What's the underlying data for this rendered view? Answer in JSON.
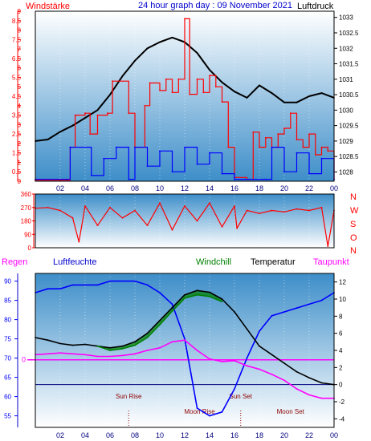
{
  "header": {
    "left_label": "Windstärke",
    "title": "24 hour graph day : 09 November 2021",
    "right_label": "Luftdruck"
  },
  "panel3_header": {
    "regen": "Regen",
    "luftfeuchte": "Luftfeuchte",
    "windchill": "Windchill",
    "temperatur": "Temperatur",
    "taupunkt": "Taupunkt"
  },
  "compass": [
    "N",
    "W",
    "S",
    "O",
    "N"
  ],
  "colors": {
    "red": "#ff0000",
    "blue": "#0000ff",
    "black": "#000000",
    "green": "#008000",
    "magenta": "#ff00ff",
    "navy": "#000080",
    "gradient_top": "#ffffff",
    "gradient_bottom": "#3d8ec9"
  },
  "chart_data": [
    {
      "type": "line",
      "name": "wind-pressure",
      "x_ticks": [
        "02",
        "04",
        "06",
        "08",
        "10",
        "12",
        "14",
        "16",
        "18",
        "20",
        "22",
        "00"
      ],
      "xlim": [
        0,
        24
      ],
      "y_left": {
        "label": "Windstärke",
        "ticks": [
          "0",
          "0.5",
          "1",
          "1.5",
          "2",
          "2.5",
          "3",
          "3.5",
          "4",
          "4.5",
          "5",
          "5.5",
          "6",
          "6.5",
          "7",
          "7.5",
          "8",
          "8.5",
          "9"
        ],
        "ylim": [
          0,
          9
        ]
      },
      "y_right": {
        "label": "Luftdruck",
        "ticks": [
          "1028",
          "1028.5",
          "1029",
          "1029.5",
          "1030",
          "1030.5",
          "1031",
          "1031.5",
          "1032",
          "1032.5",
          "1033"
        ],
        "ylim": [
          1027.7,
          1033.2
        ]
      },
      "series": [
        {
          "color": "black",
          "points": [
            [
              0,
              1029.0
            ],
            [
              1,
              1029.05
            ],
            [
              2,
              1029.3
            ],
            [
              3,
              1029.5
            ],
            [
              4,
              1029.75
            ],
            [
              5,
              1030.0
            ],
            [
              6,
              1030.5
            ],
            [
              7,
              1031.1
            ],
            [
              8,
              1031.6
            ],
            [
              9,
              1032.0
            ],
            [
              10,
              1032.2
            ],
            [
              11,
              1032.35
            ],
            [
              12,
              1032.2
            ],
            [
              13,
              1031.85
            ],
            [
              14,
              1031.3
            ],
            [
              15,
              1030.9
            ],
            [
              16,
              1030.6
            ],
            [
              17,
              1030.4
            ],
            [
              18,
              1030.8
            ],
            [
              19,
              1030.55
            ],
            [
              20,
              1030.25
            ],
            [
              21,
              1030.25
            ],
            [
              22,
              1030.45
            ],
            [
              23,
              1030.55
            ],
            [
              24,
              1030.4
            ]
          ]
        },
        {
          "color": "red",
          "points": [
            [
              0,
              0.05
            ],
            [
              1,
              0.05
            ],
            [
              2,
              0.05
            ],
            [
              2.8,
              1.8
            ],
            [
              3.2,
              3.5
            ],
            [
              4,
              3.6
            ],
            [
              4.4,
              2.5
            ],
            [
              5,
              3.5
            ],
            [
              5.8,
              3.6
            ],
            [
              6.2,
              5.3
            ],
            [
              7.5,
              3.6
            ],
            [
              8,
              1.8
            ],
            [
              8.8,
              4.0
            ],
            [
              9.2,
              5.2
            ],
            [
              10,
              4.8
            ],
            [
              10.5,
              5.4
            ],
            [
              11,
              4.7
            ],
            [
              11.5,
              5.4
            ],
            [
              12,
              8.6
            ],
            [
              12.4,
              4.6
            ],
            [
              13,
              5.4
            ],
            [
              13.5,
              4.7
            ],
            [
              14,
              5.6
            ],
            [
              14.5,
              5.0
            ],
            [
              15,
              4.2
            ],
            [
              15.5,
              1.8
            ],
            [
              16,
              0.2
            ],
            [
              17,
              0.1
            ],
            [
              17.5,
              2.6
            ],
            [
              18,
              1.8
            ],
            [
              18.5,
              2.3
            ],
            [
              19,
              1.8
            ],
            [
              19.5,
              2.5
            ],
            [
              20,
              2.8
            ],
            [
              20.5,
              3.6
            ],
            [
              21,
              2.2
            ],
            [
              21.5,
              1.8
            ],
            [
              22,
              2.5
            ],
            [
              22.5,
              1.4
            ],
            [
              23,
              1.8
            ],
            [
              23.5,
              1.6
            ],
            [
              24,
              0.1
            ]
          ]
        },
        {
          "color": "blue",
          "points": [
            [
              0,
              0.1
            ],
            [
              2.5,
              0.1
            ],
            [
              2.8,
              1.8
            ],
            [
              4.5,
              0.3
            ],
            [
              5.5,
              1.2
            ],
            [
              6.5,
              1.8
            ],
            [
              7.5,
              0.1
            ],
            [
              8,
              1.8
            ],
            [
              9,
              0.8
            ],
            [
              10,
              1.6
            ],
            [
              11,
              0.5
            ],
            [
              12,
              1.8
            ],
            [
              13,
              0.9
            ],
            [
              14,
              1.5
            ],
            [
              15,
              0.4
            ],
            [
              16,
              0.1
            ],
            [
              18.5,
              0.1
            ],
            [
              19,
              1.8
            ],
            [
              20,
              0.5
            ],
            [
              21,
              1.5
            ],
            [
              22,
              0.4
            ],
            [
              23,
              1.2
            ],
            [
              24,
              0.1
            ]
          ]
        }
      ]
    },
    {
      "type": "line",
      "name": "wind-direction",
      "x_ticks": [
        "02",
        "04",
        "06",
        "08",
        "10",
        "12",
        "14",
        "16",
        "18",
        "20",
        "22",
        "00"
      ],
      "xlim": [
        0,
        24
      ],
      "y_left": {
        "ticks": [
          "0",
          "90",
          "180",
          "270",
          "360"
        ],
        "ylim": [
          0,
          360
        ]
      },
      "series": [
        {
          "color": "red",
          "points": [
            [
              0,
              265
            ],
            [
              1,
              270
            ],
            [
              2,
              250
            ],
            [
              3,
              200
            ],
            [
              3.5,
              40
            ],
            [
              4,
              280
            ],
            [
              5,
              150
            ],
            [
              6,
              270
            ],
            [
              7,
              200
            ],
            [
              8,
              250
            ],
            [
              9,
              150
            ],
            [
              10,
              300
            ],
            [
              11,
              120
            ],
            [
              12,
              280
            ],
            [
              13,
              180
            ],
            [
              14,
              300
            ],
            [
              15,
              140
            ],
            [
              16,
              280
            ],
            [
              16.2,
              130
            ],
            [
              17,
              250
            ],
            [
              18,
              230
            ],
            [
              19,
              250
            ],
            [
              20,
              240
            ],
            [
              21,
              260
            ],
            [
              22,
              250
            ],
            [
              23,
              270
            ],
            [
              23.5,
              10
            ],
            [
              24,
              250
            ]
          ]
        }
      ]
    },
    {
      "type": "line",
      "name": "humidity-temperature",
      "x_ticks": [
        "02",
        "04",
        "06",
        "08",
        "10",
        "12",
        "14",
        "16",
        "18",
        "20",
        "22",
        "00"
      ],
      "xlim": [
        0,
        24
      ],
      "y_left": {
        "label": "Luftfeuchte",
        "ticks": [
          "55",
          "60",
          "65",
          "70",
          "75",
          "80",
          "85",
          "90"
        ],
        "ylim": [
          52,
          92
        ]
      },
      "y_right": {
        "label": "Temperatur",
        "ticks": [
          "-4",
          "-2",
          "0",
          "2",
          "4",
          "6",
          "8",
          "10",
          "12"
        ],
        "ylim": [
          -5,
          13
        ]
      },
      "rain_label": "0",
      "annotations": [
        {
          "text": "Sun Rise",
          "x": 7.5,
          "row": "upper"
        },
        {
          "text": "Moon Rise",
          "x": 13.2,
          "row": "lower"
        },
        {
          "text": "Sun Set",
          "x": 16.5,
          "row": "upper"
        },
        {
          "text": "Moon Set",
          "x": 20.5,
          "row": "lower"
        }
      ],
      "series": [
        {
          "name": "Luftfeuchte",
          "color": "blue",
          "points": [
            [
              0,
              87
            ],
            [
              1,
              88
            ],
            [
              2,
              88
            ],
            [
              3,
              89
            ],
            [
              5,
              89
            ],
            [
              6,
              90
            ],
            [
              8,
              90
            ],
            [
              9,
              89
            ],
            [
              10,
              87
            ],
            [
              11,
              84
            ],
            [
              12,
              75
            ],
            [
              12.5,
              66
            ],
            [
              13,
              57
            ],
            [
              14,
              55
            ],
            [
              15,
              56
            ],
            [
              16,
              62
            ],
            [
              17,
              70
            ],
            [
              18,
              77
            ],
            [
              19,
              81
            ],
            [
              20,
              82
            ],
            [
              21,
              83
            ],
            [
              22,
              84
            ],
            [
              23,
              85
            ],
            [
              24,
              87
            ]
          ]
        },
        {
          "name": "Temperatur",
          "color": "black",
          "points": [
            [
              0,
              5.5
            ],
            [
              1,
              5.2
            ],
            [
              2,
              4.8
            ],
            [
              3,
              4.6
            ],
            [
              4,
              4.7
            ],
            [
              5,
              4.5
            ],
            [
              6,
              4.3
            ],
            [
              7,
              4.5
            ],
            [
              8,
              5.0
            ],
            [
              9,
              6.0
            ],
            [
              10,
              7.5
            ],
            [
              11,
              9.0
            ],
            [
              12,
              10.5
            ],
            [
              13,
              11.0
            ],
            [
              14,
              10.8
            ],
            [
              15,
              10.0
            ],
            [
              16,
              8.5
            ],
            [
              17,
              6.5
            ],
            [
              18,
              4.5
            ],
            [
              19,
              3.5
            ],
            [
              20,
              2.5
            ],
            [
              21,
              1.5
            ],
            [
              22,
              0.8
            ],
            [
              23,
              0.2
            ],
            [
              24,
              0.0
            ]
          ]
        },
        {
          "name": "Windchill",
          "color": "green",
          "points": [
            [
              5,
              4.5
            ],
            [
              6,
              4.0
            ],
            [
              7,
              4.2
            ],
            [
              8,
              4.6
            ],
            [
              9,
              5.5
            ],
            [
              10,
              7.0
            ],
            [
              11,
              8.6
            ],
            [
              12,
              10.1
            ],
            [
              13,
              10.5
            ],
            [
              14,
              10.3
            ],
            [
              15,
              9.7
            ]
          ]
        },
        {
          "name": "Taupunkt",
          "color": "magenta",
          "points": [
            [
              0,
              3.5
            ],
            [
              1,
              3.6
            ],
            [
              2,
              3.7
            ],
            [
              3,
              3.6
            ],
            [
              4,
              3.5
            ],
            [
              5,
              3.3
            ],
            [
              6,
              3.3
            ],
            [
              7,
              3.4
            ],
            [
              8,
              3.6
            ],
            [
              9,
              4.0
            ],
            [
              10,
              4.3
            ],
            [
              11,
              5.0
            ],
            [
              12,
              5.2
            ],
            [
              13,
              4.0
            ],
            [
              14,
              3.0
            ],
            [
              15,
              2.7
            ],
            [
              16,
              2.8
            ],
            [
              17,
              2.2
            ],
            [
              18,
              1.8
            ],
            [
              19,
              1.2
            ],
            [
              20,
              0.5
            ],
            [
              21,
              -0.5
            ],
            [
              22,
              -1.2
            ],
            [
              23,
              -1.6
            ],
            [
              24,
              -1.6
            ]
          ]
        }
      ]
    }
  ]
}
